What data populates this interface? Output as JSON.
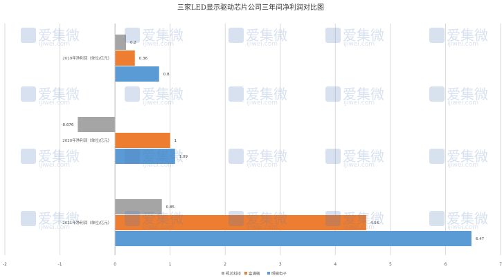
{
  "chart_data": {
    "type": "bar",
    "orientation": "horizontal",
    "title": "三家LED显示驱动芯片公司三年间净利润对比图",
    "categories": [
      "2019年净利润（单位/亿元）",
      "2020年净利润（单位/亿元）",
      "2021年净利润（单位/亿元）"
    ],
    "series": [
      {
        "name": "视芯科技",
        "color": "#a5a5a5",
        "values": [
          0.2,
          -0.676,
          0.85
        ]
      },
      {
        "name": "富满微",
        "color": "#ed7d31",
        "values": [
          0.36,
          1,
          4.56
        ]
      },
      {
        "name": "明微电子",
        "color": "#5b9bd5",
        "values": [
          0.8,
          1.09,
          6.47
        ]
      }
    ],
    "value_labels": [
      [
        "0.2",
        "0.36",
        "0.8"
      ],
      [
        "-0.676",
        "1",
        "1.09"
      ],
      [
        "0.85",
        "4.56",
        "6.47"
      ]
    ],
    "xlim": [
      -2,
      7
    ],
    "xticks": [
      "-2",
      "-1",
      "0",
      "1",
      "2",
      "3",
      "4",
      "5",
      "6",
      "7"
    ],
    "grid": true,
    "legend_position": "bottom"
  },
  "watermark": {
    "text": "爱集微",
    "url": "ijiwei.com"
  }
}
